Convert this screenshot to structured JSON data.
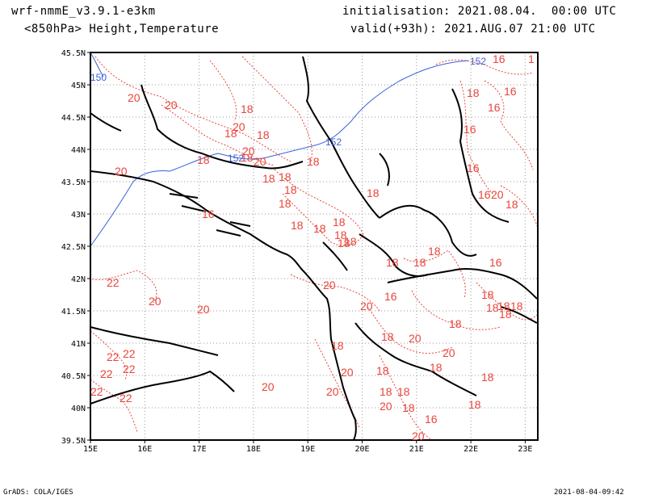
{
  "header": {
    "model": "wrf-nmmE_v3.9.1-e3km",
    "field": "<850hPa> Height,Temperature",
    "init": "initialisation: 2021.08.04.  00:00 UTC",
    "valid": "valid(+93h): 2021.AUG.07 21:00 UTC"
  },
  "footer": {
    "software": "GrADS: COLA/IGES",
    "timestamp": "2021-08-04-09:42"
  },
  "axes": {
    "lat_ticks": [
      "45.5N",
      "45N",
      "44.5N",
      "44N",
      "43.5N",
      "43N",
      "42.5N",
      "42N",
      "41.5N",
      "41N",
      "40.5N",
      "40N",
      "39.5N"
    ],
    "lon_ticks": [
      "15E",
      "16E",
      "17E",
      "18E",
      "19E",
      "20E",
      "21E",
      "22E",
      "23E"
    ]
  },
  "colors": {
    "temperature": "#e8453c",
    "height": "#3a5fd8",
    "coast": "#000000",
    "grid": "#9a9a9a"
  },
  "height_labels": [
    "150",
    "152",
    "152",
    "152"
  ],
  "temperature_labels": [
    "16",
    "1",
    "16",
    "16",
    "18",
    "20",
    "18",
    "20",
    "18",
    "20",
    "18",
    "18",
    "20",
    "20",
    "18",
    "18",
    "20",
    "18",
    "18",
    "18",
    "16",
    "16",
    "16",
    "20",
    "18",
    "16",
    "18",
    "18",
    "18",
    "18",
    "18",
    "18",
    "18",
    "18",
    "18",
    "18",
    "18",
    "16",
    "20",
    "22",
    "20",
    "20",
    "16",
    "20",
    "18",
    "18",
    "18",
    "18",
    "18",
    "18",
    "18",
    "20",
    "18",
    "20",
    "22",
    "22",
    "22",
    "22",
    "20",
    "20",
    "18",
    "18",
    "22",
    "22",
    "20",
    "18",
    "20",
    "18",
    "18",
    "18",
    "16",
    "20",
    "18"
  ]
}
